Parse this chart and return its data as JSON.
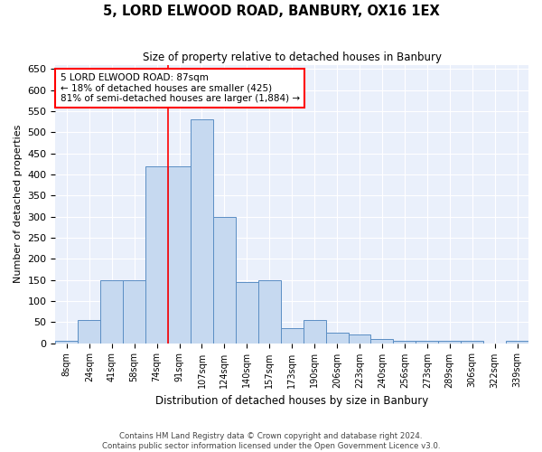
{
  "title": "5, LORD ELWOOD ROAD, BANBURY, OX16 1EX",
  "subtitle": "Size of property relative to detached houses in Banbury",
  "xlabel": "Distribution of detached houses by size in Banbury",
  "ylabel": "Number of detached properties",
  "categories": [
    "8sqm",
    "24sqm",
    "41sqm",
    "58sqm",
    "74sqm",
    "91sqm",
    "107sqm",
    "124sqm",
    "140sqm",
    "157sqm",
    "173sqm",
    "190sqm",
    "206sqm",
    "223sqm",
    "240sqm",
    "256sqm",
    "273sqm",
    "289sqm",
    "306sqm",
    "322sqm",
    "339sqm"
  ],
  "values": [
    5,
    55,
    150,
    150,
    420,
    420,
    530,
    300,
    145,
    150,
    35,
    55,
    25,
    20,
    10,
    5,
    5,
    5,
    5,
    0,
    5
  ],
  "bar_color": "#c6d9f0",
  "bar_edge_color": "#5b8ec4",
  "annotation_text": "5 LORD ELWOOD ROAD: 87sqm\n← 18% of detached houses are smaller (425)\n81% of semi-detached houses are larger (1,884) →",
  "annotation_box_color": "white",
  "annotation_box_edge_color": "red",
  "vline_color": "red",
  "ylim": [
    0,
    660
  ],
  "yticks": [
    0,
    50,
    100,
    150,
    200,
    250,
    300,
    350,
    400,
    450,
    500,
    550,
    600,
    650
  ],
  "bg_color": "#eaf0fb",
  "grid_color": "white",
  "footer_line1": "Contains HM Land Registry data © Crown copyright and database right 2024.",
  "footer_line2": "Contains public sector information licensed under the Open Government Licence v3.0."
}
